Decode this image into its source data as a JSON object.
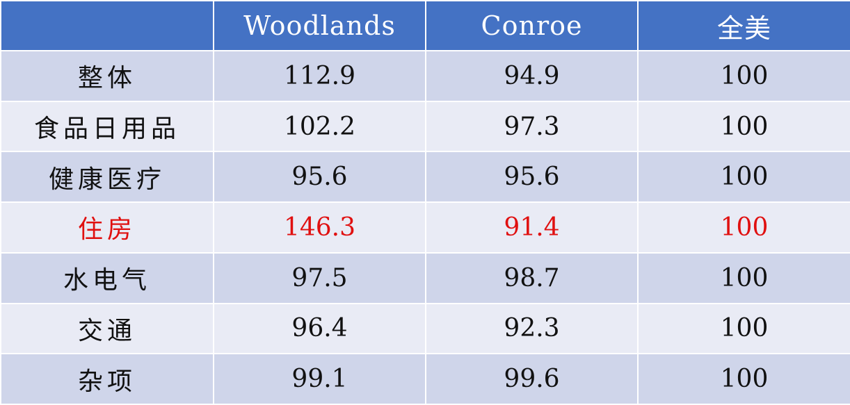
{
  "chart_data": {
    "type": "table",
    "columns": [
      "",
      "Woodlands",
      "Conroe",
      "全美"
    ],
    "rows": [
      {
        "label": "整体",
        "values": [
          "112.9",
          "94.9",
          "100"
        ],
        "highlight": false
      },
      {
        "label": "食品日用品",
        "values": [
          "102.2",
          "97.3",
          "100"
        ],
        "highlight": false
      },
      {
        "label": "健康医疗",
        "values": [
          "95.6",
          "95.6",
          "100"
        ],
        "highlight": false
      },
      {
        "label": "住房",
        "values": [
          "146.3",
          "91.4",
          "100"
        ],
        "highlight": true
      },
      {
        "label": "水电气",
        "values": [
          "97.5",
          "98.7",
          "100"
        ],
        "highlight": false
      },
      {
        "label": "交通",
        "values": [
          "96.4",
          "92.3",
          "100"
        ],
        "highlight": false
      },
      {
        "label": "杂项",
        "values": [
          "99.1",
          "99.6",
          "100"
        ],
        "highlight": false
      }
    ]
  },
  "colors": {
    "header_bg": "#4472c4",
    "row_odd_bg": "#cfd5ea",
    "row_even_bg": "#e9ebf5",
    "highlight_text": "#e01010"
  }
}
